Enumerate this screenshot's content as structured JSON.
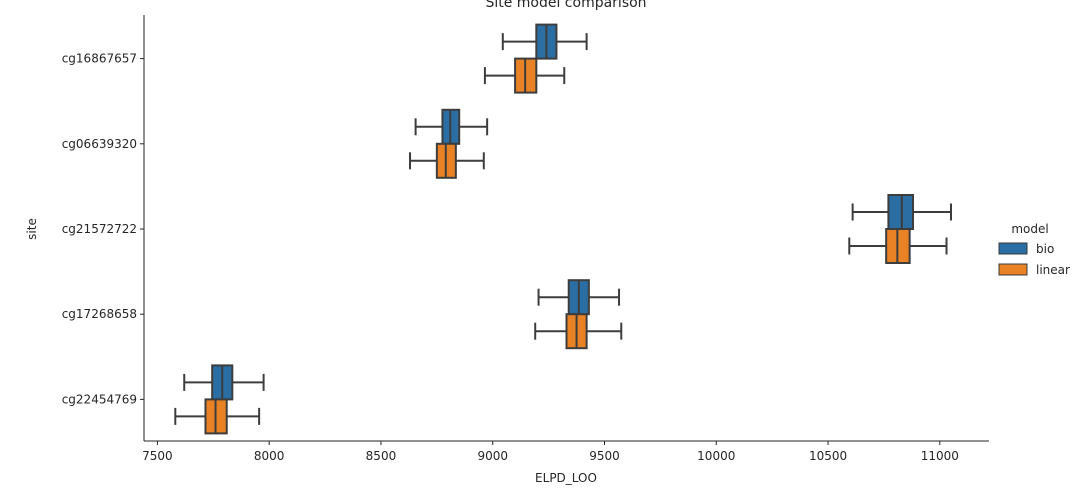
{
  "chart_data": {
    "type": "boxplot",
    "orientation": "horizontal",
    "title": "Site model comparison",
    "xlabel": "ELPD_LOO",
    "ylabel": "site",
    "xlim": [
      7440,
      11220
    ],
    "x_ticks": [
      7500,
      8000,
      8500,
      9000,
      9500,
      10000,
      10500,
      11000
    ],
    "x_tick_labels": [
      "7500",
      "8000",
      "8500",
      "9000",
      "9500",
      "10000",
      "10500",
      "11000"
    ],
    "categories": [
      "cg16867657",
      "cg06639320",
      "cg21572722",
      "cg17268658",
      "cg22454769"
    ],
    "legend": {
      "title": "model",
      "placement": "right"
    },
    "series": [
      {
        "name": "bio",
        "color": "#2b6ea3",
        "boxes": [
          {
            "category": "cg16867657",
            "whislo": 9045,
            "q1": 9195,
            "med": 9240,
            "q3": 9285,
            "whishi": 9420
          },
          {
            "category": "cg06639320",
            "whislo": 8655,
            "q1": 8775,
            "med": 8810,
            "q3": 8850,
            "whishi": 8975
          },
          {
            "category": "cg21572722",
            "whislo": 10610,
            "q1": 10770,
            "med": 10830,
            "q3": 10880,
            "whishi": 11050
          },
          {
            "category": "cg17268658",
            "whislo": 9205,
            "q1": 9340,
            "med": 9385,
            "q3": 9430,
            "whishi": 9565
          },
          {
            "category": "cg22454769",
            "whislo": 7620,
            "q1": 7745,
            "med": 7790,
            "q3": 7835,
            "whishi": 7975
          }
        ]
      },
      {
        "name": "linear",
        "color": "#e88224",
        "boxes": [
          {
            "category": "cg16867657",
            "whislo": 8965,
            "q1": 9100,
            "med": 9145,
            "q3": 9195,
            "whishi": 9320
          },
          {
            "category": "cg06639320",
            "whislo": 8630,
            "q1": 8750,
            "med": 8790,
            "q3": 8835,
            "whishi": 8960
          },
          {
            "category": "cg21572722",
            "whislo": 10595,
            "q1": 10760,
            "med": 10810,
            "q3": 10865,
            "whishi": 11030
          },
          {
            "category": "cg17268658",
            "whislo": 9190,
            "q1": 9330,
            "med": 9375,
            "q3": 9420,
            "whishi": 9575
          },
          {
            "category": "cg22454769",
            "whislo": 7580,
            "q1": 7715,
            "med": 7760,
            "q3": 7810,
            "whishi": 7955
          }
        ]
      }
    ]
  }
}
